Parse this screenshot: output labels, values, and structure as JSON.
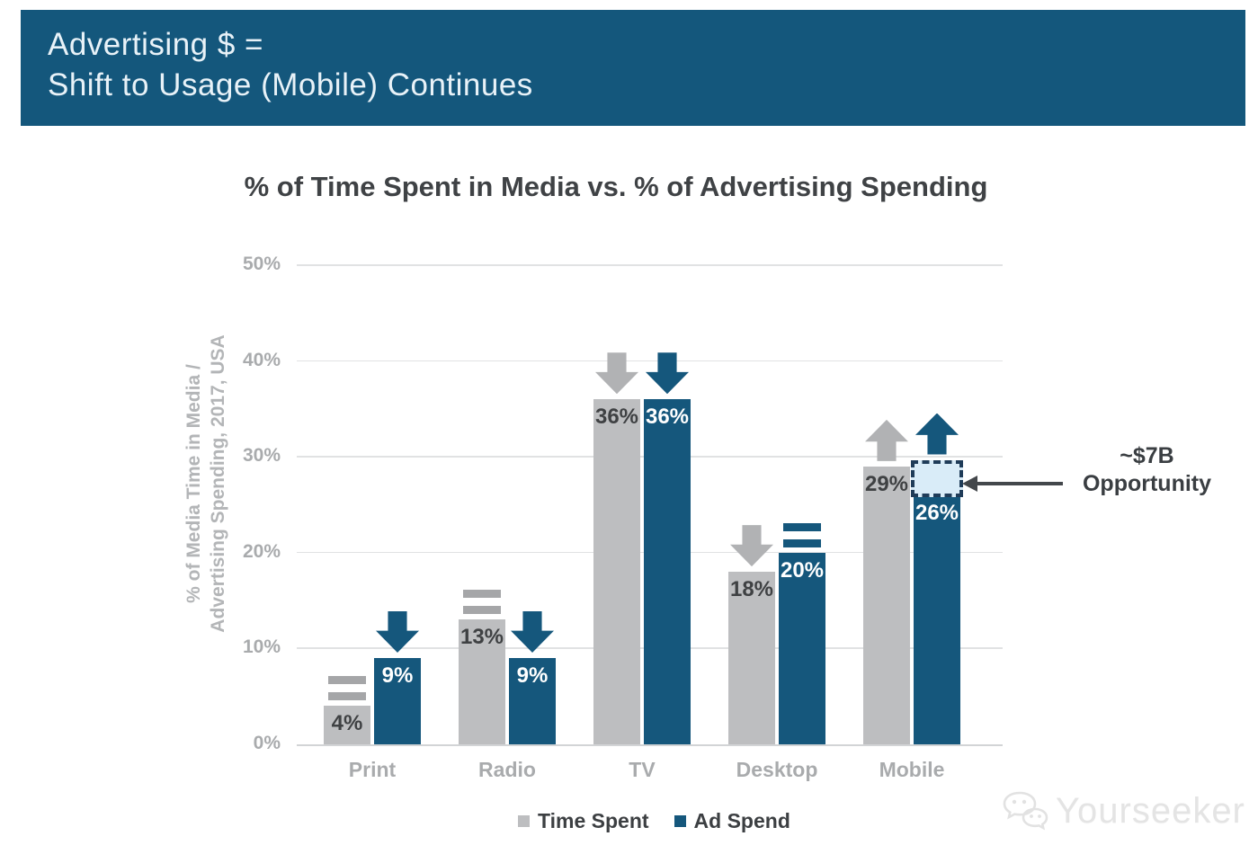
{
  "header": {
    "line1": "Advertising $ =",
    "line2": "Shift to Usage (Mobile) Continues"
  },
  "chart_data": {
    "type": "bar",
    "title": "% of Time Spent in Media vs. % of Advertising Spending",
    "ylabel_line1": "% of Media Time in Media /",
    "ylabel_line2": "Advertising Spending, 2017, USA",
    "categories": [
      "Print",
      "Radio",
      "TV",
      "Desktop",
      "Mobile"
    ],
    "series": [
      {
        "name": "Time Spent",
        "color": "#bdbec0",
        "values": [
          4,
          13,
          36,
          18,
          29
        ],
        "trends": [
          "equal",
          "equal",
          "down",
          "down",
          "up"
        ]
      },
      {
        "name": "Ad Spend",
        "color": "#15577C",
        "values": [
          9,
          9,
          36,
          20,
          26
        ],
        "trends": [
          "down",
          "down",
          "down",
          "equal",
          "up"
        ]
      }
    ],
    "value_suffix": "%",
    "ylim": [
      0,
      50
    ],
    "yticks": [
      "0%",
      "10%",
      "20%",
      "30%",
      "40%",
      "50%"
    ],
    "grid": true,
    "legend_position": "bottom",
    "annotation": {
      "line1": "~$7B",
      "line2": "Opportunity",
      "target_category": "Mobile",
      "range": [
        26,
        29.5
      ]
    }
  },
  "watermark": {
    "text": "Yourseeker"
  },
  "colors": {
    "banner_blue": "#14577C",
    "bar_blue": "#15577C",
    "bar_gray": "#bdbec0",
    "trend_gray": "#b1b2b4",
    "equal_gray": "#a5a6a8",
    "opportunity_fill": "#d9ecf8",
    "opportunity_border": "#1f3c59",
    "gridline": "#e1e2e3",
    "axis_text": "#a9abad"
  }
}
